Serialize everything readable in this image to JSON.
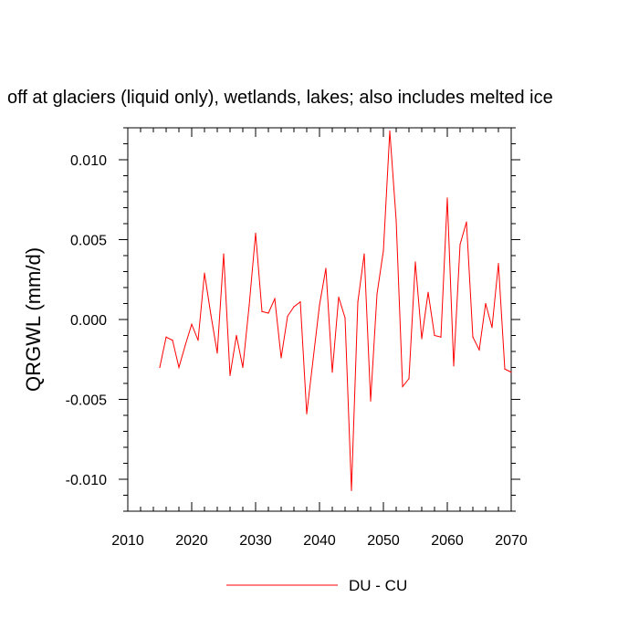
{
  "chart_data": {
    "type": "line",
    "title": "off at glaciers (liquid only), wetlands, lakes; also includes melted ice",
    "xlabel": "",
    "ylabel": "QRGWL  (mm/d)",
    "xlim": [
      2010,
      2070
    ],
    "ylim": [
      -0.012,
      0.012
    ],
    "xticks": [
      2010,
      2020,
      2030,
      2040,
      2050,
      2060,
      2070
    ],
    "xtick_labels": [
      "2010",
      "2020",
      "2030",
      "2040",
      "2050",
      "2060",
      "2070"
    ],
    "yticks": [
      0.01,
      0.005,
      0.0,
      -0.005,
      -0.01
    ],
    "ytick_labels": [
      "0.010",
      "0.005",
      "0.000",
      "-0.005",
      "-0.010"
    ],
    "grid": false,
    "legend_position": "bottom-center",
    "x": [
      2015,
      2016,
      2017,
      2018,
      2019,
      2020,
      2021,
      2022,
      2023,
      2024,
      2025,
      2026,
      2027,
      2028,
      2029,
      2030,
      2031,
      2032,
      2033,
      2034,
      2035,
      2036,
      2037,
      2038,
      2039,
      2040,
      2041,
      2042,
      2043,
      2044,
      2045,
      2046,
      2047,
      2048,
      2049,
      2050,
      2051,
      2052,
      2053,
      2054,
      2055,
      2056,
      2057,
      2058,
      2059,
      2060,
      2061,
      2062,
      2063,
      2064,
      2065,
      2066,
      2067,
      2068,
      2069,
      2070
    ],
    "series": [
      {
        "name": "DU - CU",
        "color": "#ff0000",
        "values": [
          -0.003,
          -0.0011,
          -0.0013,
          -0.003,
          -0.0016,
          -0.0003,
          -0.0013,
          0.0029,
          0.0003,
          -0.0021,
          0.0041,
          -0.0035,
          -0.001,
          -0.003,
          0.0009,
          0.0054,
          0.0005,
          0.0004,
          0.0013,
          -0.0024,
          0.0002,
          0.0008,
          0.0011,
          -0.0059,
          -0.0025,
          0.0009,
          0.0032,
          -0.0033,
          0.0014,
          0.0001,
          -0.0107,
          0.0011,
          0.0041,
          -0.0051,
          0.0016,
          0.0043,
          0.0118,
          0.0062,
          -0.0042,
          -0.0037,
          0.0036,
          -0.0012,
          0.0017,
          -0.001,
          -0.0011,
          0.0076,
          -0.0029,
          0.0047,
          0.0061,
          -0.0011,
          -0.0019,
          0.001,
          -0.0005,
          0.0035,
          -0.0031,
          -0.0033
        ]
      }
    ]
  }
}
